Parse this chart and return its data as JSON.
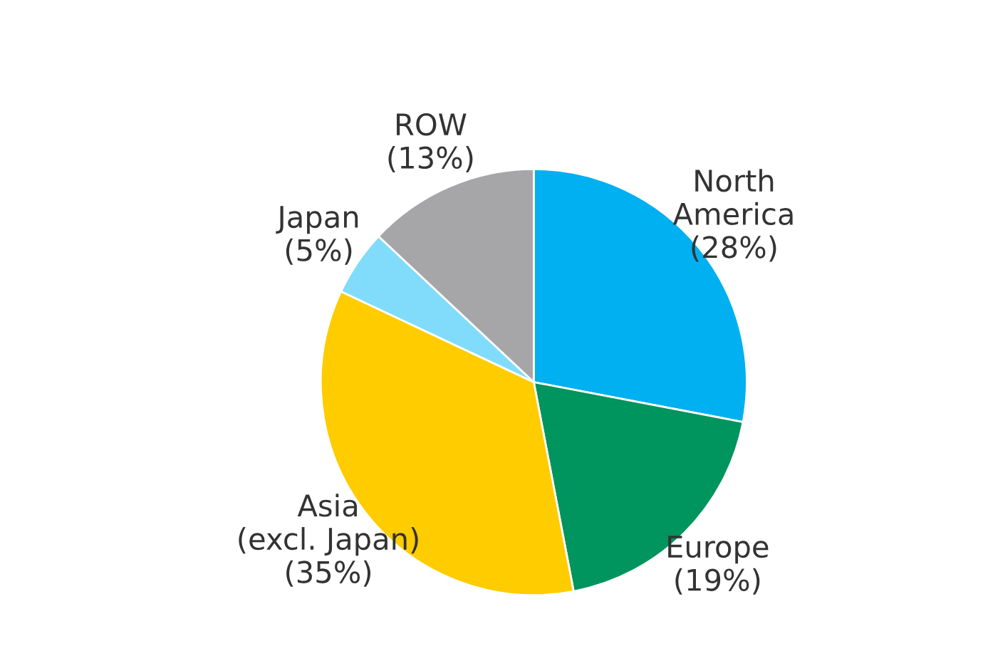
{
  "chart_data": {
    "type": "pie",
    "categories": [
      "North\nAmerica",
      "Europe",
      "Asia\n(excl. Japan)",
      "Japan",
      "ROW"
    ],
    "values": [
      28,
      19,
      35,
      5,
      13
    ],
    "value_labels": [
      "(28%)",
      "(19%)",
      "(35%)",
      "(5%)",
      "(13%)"
    ],
    "colors": [
      "#00b0f0",
      "#00945e",
      "#ffcc00",
      "#80dcfa",
      "#a6a6a8"
    ]
  }
}
